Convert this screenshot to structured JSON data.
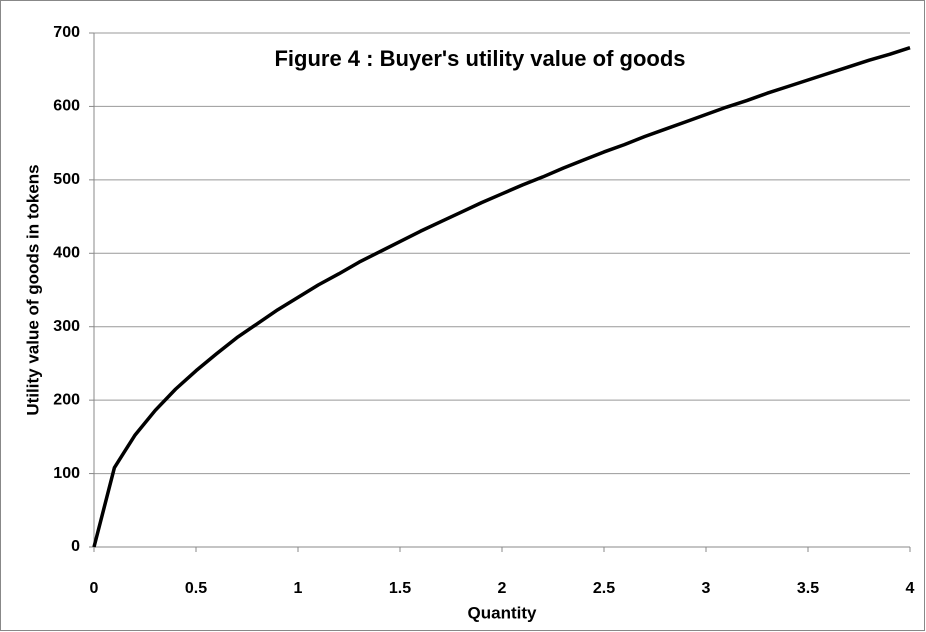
{
  "chart_data": {
    "type": "line",
    "title": "Figure 4 : Buyer's utility value of goods",
    "x_label": "Quantity",
    "y_label": "Utility value of goods in tokens",
    "x": [
      0,
      0.1,
      0.2,
      0.3,
      0.4,
      0.5,
      0.6,
      0.7,
      0.8,
      0.9,
      1,
      1.1,
      1.2,
      1.3,
      1.4,
      1.5,
      1.6,
      1.7,
      1.8,
      1.9,
      2,
      2.1,
      2.2,
      2.3,
      2.4,
      2.5,
      2.6,
      2.7,
      2.8,
      2.9,
      3,
      3.1,
      3.2,
      3.3,
      3.4,
      3.5,
      3.6,
      3.7,
      3.8,
      3.9,
      4
    ],
    "series": [
      {
        "color": "#000000",
        "values": [
          0,
          108,
          152,
          186,
          215,
          240,
          263,
          285,
          304,
          323,
          340,
          357,
          372,
          388,
          402,
          416,
          430,
          443,
          456,
          469,
          481,
          493,
          504,
          516,
          527,
          538,
          548,
          559,
          569,
          579,
          589,
          599,
          608,
          618,
          627,
          636,
          645,
          654,
          663,
          671,
          680
        ]
      }
    ],
    "xlim": [
      0,
      4
    ],
    "xticks": [
      0,
      0.5,
      1,
      1.5,
      2,
      2.5,
      3,
      3.5,
      4
    ],
    "ylim": [
      0,
      700
    ],
    "yticks": [
      0,
      100,
      200,
      300,
      400,
      500,
      600,
      700
    ],
    "grid": true
  }
}
